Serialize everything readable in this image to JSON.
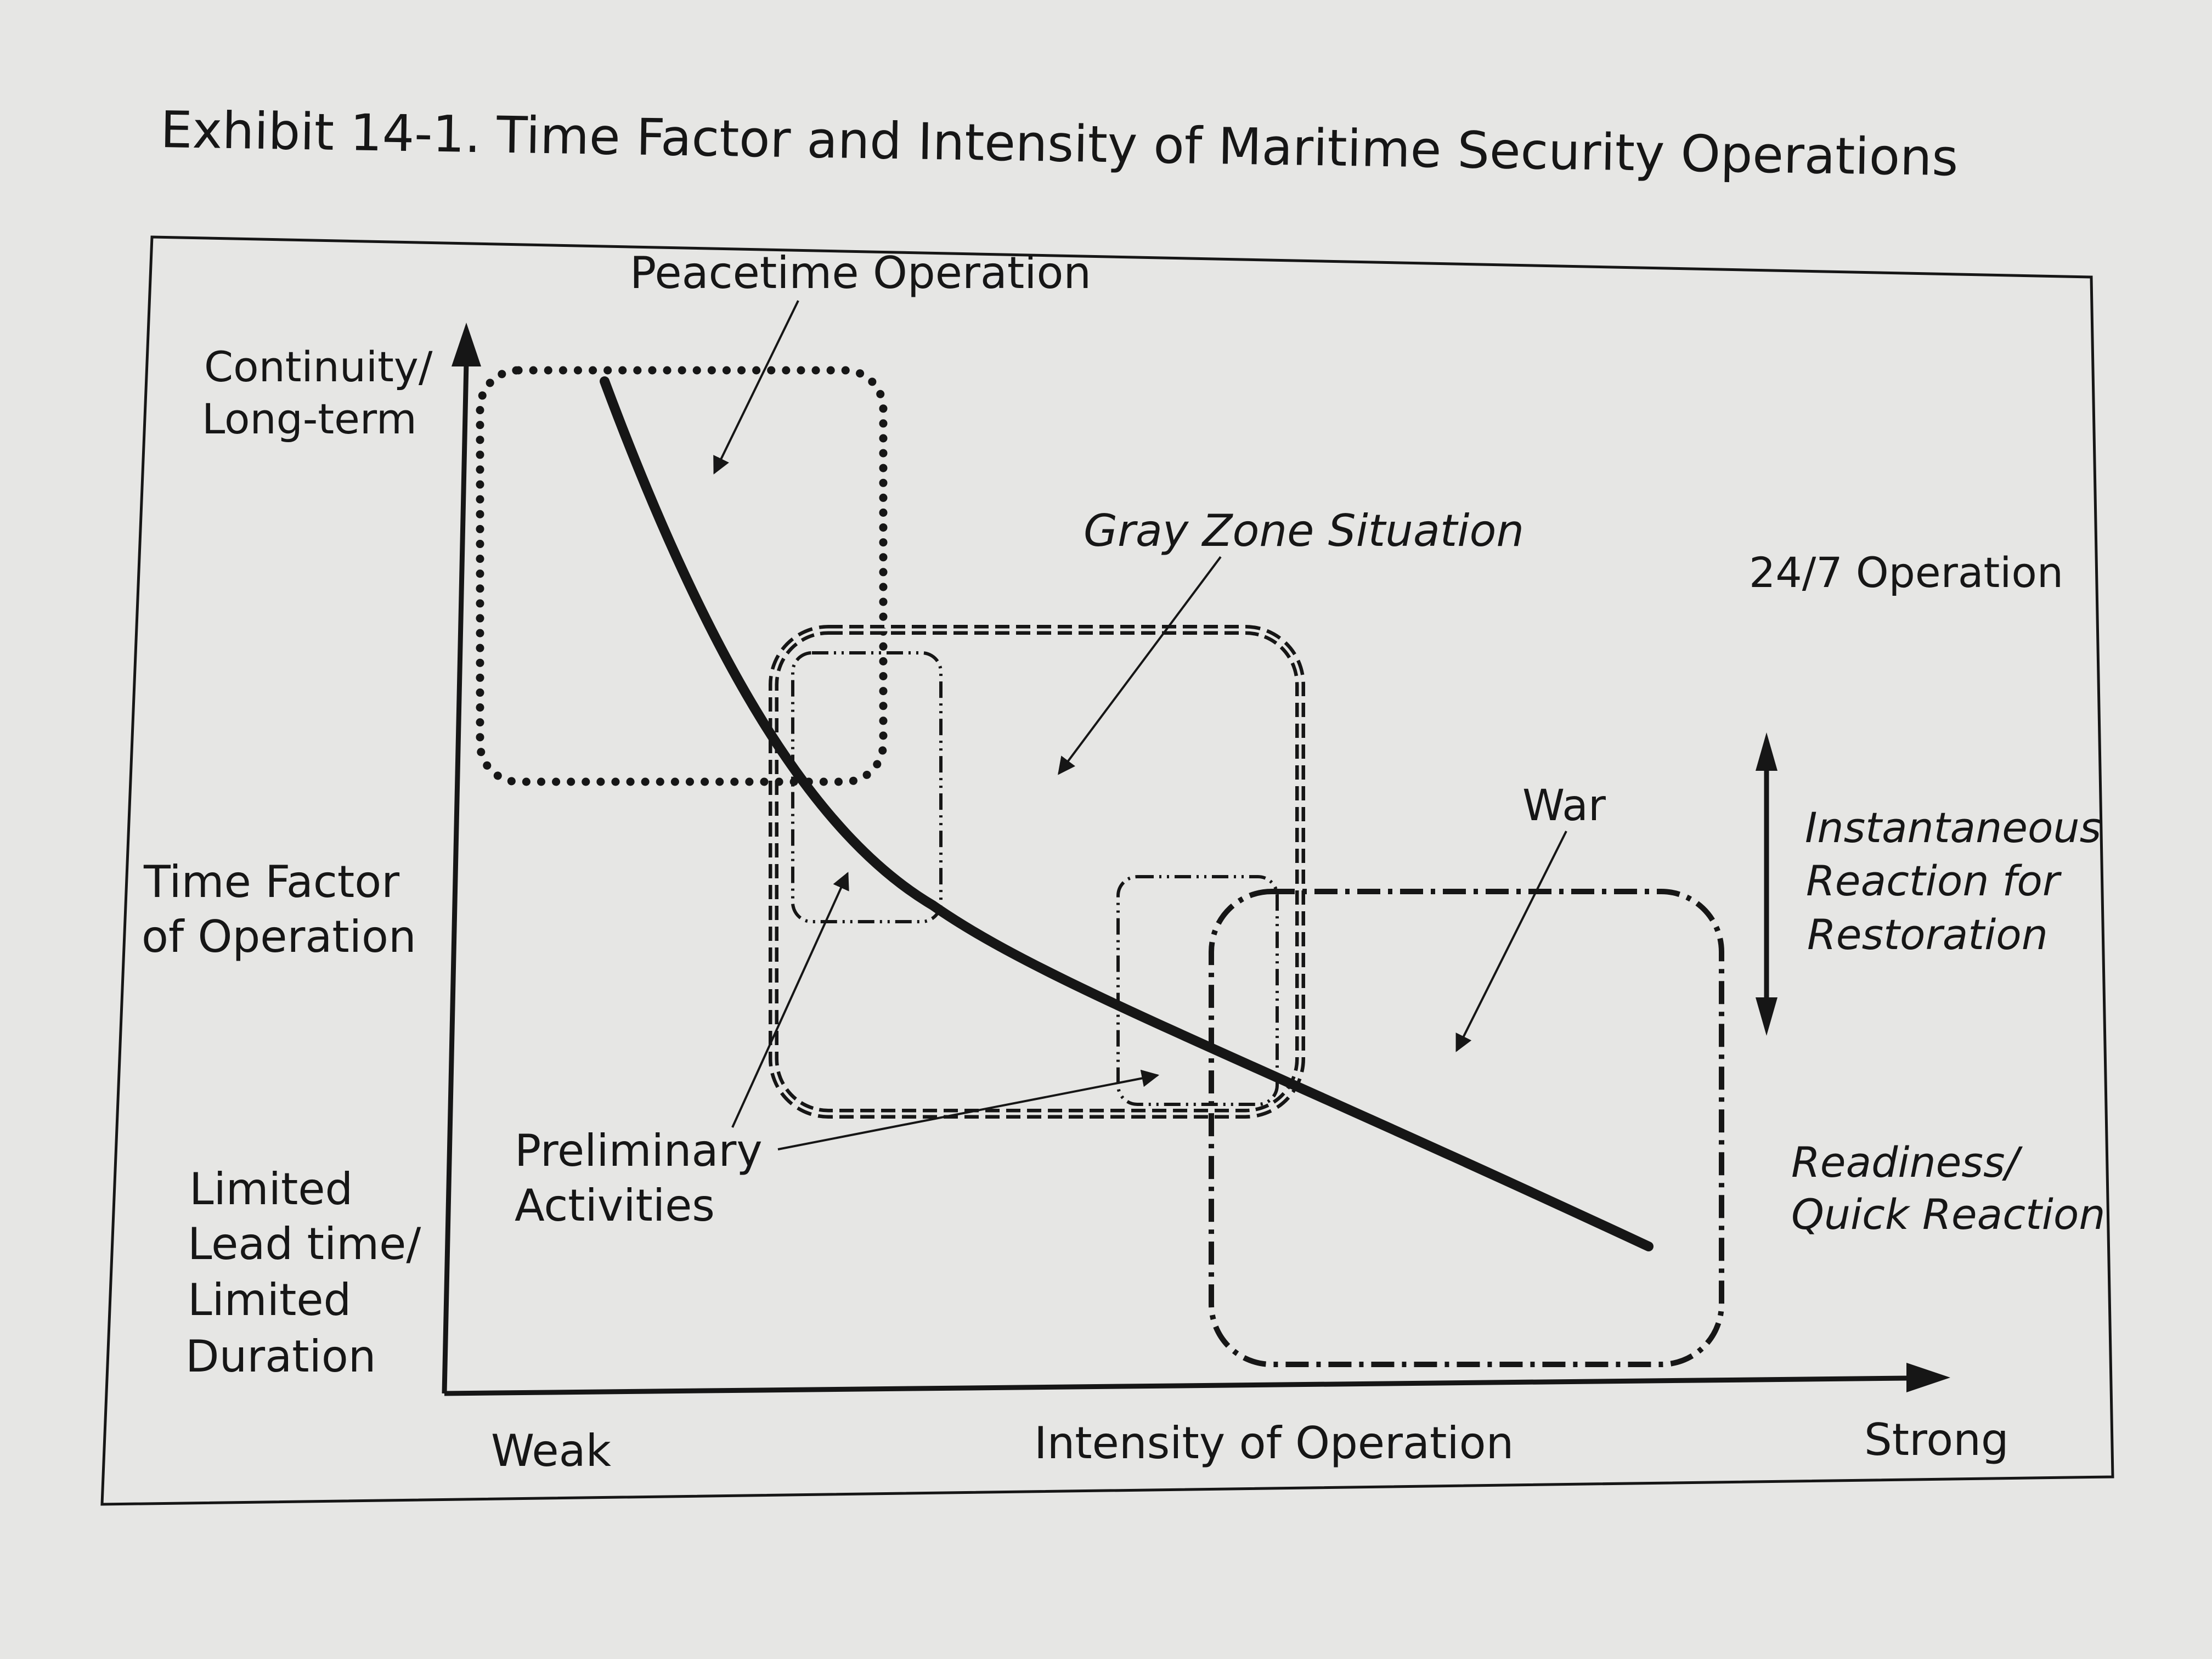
{
  "exhibit": {
    "title": "Exhibit 14-1. Time Factor and Intensity of Maritime Security Operations"
  },
  "y_axis": {
    "top_label": [
      "Continuity/",
      "Long-term"
    ],
    "middle_label": [
      "Time Factor",
      "of Operation"
    ],
    "bottom_label": [
      "Limited",
      "Lead time/",
      "Limited",
      "Duration"
    ]
  },
  "x_axis": {
    "left_label": "Weak",
    "middle_label": "Intensity of Operation",
    "right_label": "Strong"
  },
  "regions": {
    "peacetime": "Peacetime Operation",
    "gray_zone": "Gray Zone Situation",
    "war": "War",
    "preliminary": [
      "Preliminary",
      "Activities"
    ]
  },
  "side_labels": {
    "operation_247": "24/7 Operation",
    "instantaneous": [
      "Instantaneous",
      "Reaction for",
      "Restoration"
    ],
    "readiness": [
      "Readiness/",
      "Quick Reaction"
    ]
  },
  "colors": {
    "page": "#e6e6e4",
    "ink": "#161616"
  }
}
